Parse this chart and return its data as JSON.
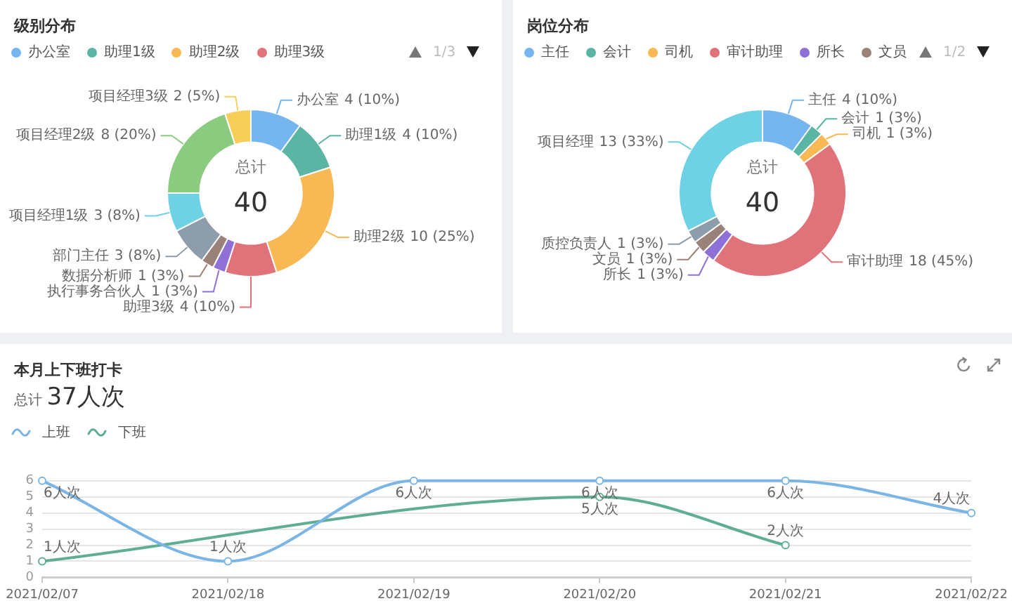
{
  "chart_data": [
    {
      "type": "donut",
      "title": "级别分布",
      "categories": [
        "办公室",
        "助理1级",
        "助理2级",
        "助理3级",
        "执行事务合伙人",
        "数据分析师",
        "部门主任",
        "项目经理1级",
        "项目经理2级",
        "项目经理3级"
      ],
      "values": [
        4,
        4,
        10,
        4,
        1,
        1,
        3,
        3,
        8,
        2
      ],
      "colors": [
        "#76b6f0",
        "#5bb5a4",
        "#f8b853",
        "#e0727a",
        "#8e70d6",
        "#9b8279",
        "#8d9dab",
        "#6fd1e4",
        "#8acb7f",
        "#f7ce58"
      ],
      "value_labels": [
        "4 (10%)",
        "4 (10%)",
        "10 (25%)",
        "4 (10%)",
        "1 (3%)",
        "1 (3%)",
        "3 (8%)",
        "3 (8%)",
        "8 (20%)",
        "2 (5%)"
      ],
      "legend": "top left",
      "annotations": [
        "总计",
        "40",
        "1/3"
      ]
    },
    {
      "type": "donut",
      "title": "岗位分布",
      "categories": [
        "主任",
        "会计",
        "司机",
        "审计助理",
        "所长",
        "文员",
        "质控负责人",
        "项目经理"
      ],
      "values": [
        4,
        1,
        1,
        18,
        1,
        1,
        1,
        13
      ],
      "colors": [
        "#76b6f0",
        "#5bb5a4",
        "#f8b853",
        "#e0727a",
        "#8e70d6",
        "#9b8279",
        "#8d9dab",
        "#6fd1e4"
      ],
      "value_labels": [
        "4 (10%)",
        "1 (3%)",
        "1 (3%)",
        "18 (45%)",
        "1 (3%)",
        "1 (3%)",
        "1 (3%)",
        "13 (33%)"
      ],
      "legend": "top left",
      "annotations": [
        "总计",
        "40",
        "1/2"
      ]
    },
    {
      "type": "line",
      "title": "本月上下班打卡",
      "subtitle": "总计 37人次",
      "categories": [
        "2021/02/07",
        "2021/02/18",
        "2021/02/19",
        "2021/02/20",
        "2021/02/21",
        "2021/02/22"
      ],
      "series": [
        {
          "name": "上班",
          "color": "#7ab5e5",
          "values": [
            6,
            1,
            6,
            6,
            6,
            4
          ],
          "value_labels": [
            "6人次",
            "1人次",
            "6人次",
            "6人次",
            "6人次",
            "4人次"
          ]
        },
        {
          "name": "下班",
          "color": "#5fae92",
          "values": [
            1,
            null,
            null,
            5,
            2,
            null
          ],
          "value_labels": [
            "1人次",
            null,
            null,
            "5人次",
            "2人次",
            null
          ]
        }
      ],
      "ylim": [
        0,
        6
      ],
      "yticks": [
        0,
        1,
        2,
        3,
        4,
        5,
        6
      ],
      "grid": "y",
      "legend": "top left",
      "marker": "circle"
    }
  ]
}
